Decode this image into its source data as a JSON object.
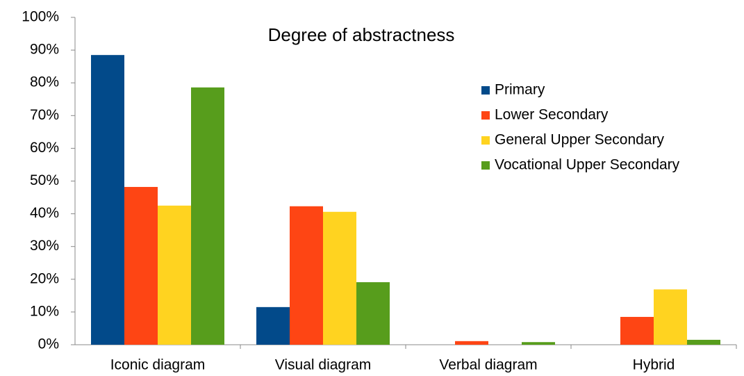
{
  "chart_data": {
    "type": "bar",
    "title": "Degree of abstractness",
    "categories": [
      "Iconic diagram",
      "Visual diagram",
      "Verbal diagram",
      "Hybrid"
    ],
    "series": [
      {
        "name": "Primary",
        "color": "#024a8a",
        "values": [
          88.5,
          11.5,
          0,
          0
        ]
      },
      {
        "name": "Lower Secondary",
        "color": "#fe4514",
        "values": [
          48.2,
          42.3,
          1.1,
          8.5
        ]
      },
      {
        "name": "General Upper Secondary",
        "color": "#ffd320",
        "values": [
          42.5,
          40.6,
          0,
          16.9
        ]
      },
      {
        "name": "Vocational Upper Secondary",
        "color": "#579d1c",
        "values": [
          78.6,
          19.1,
          0.8,
          1.5
        ]
      }
    ],
    "ylim": [
      0,
      100
    ],
    "yticks": [
      {
        "value": 0,
        "label": "0%"
      },
      {
        "value": 10,
        "label": "10%"
      },
      {
        "value": 20,
        "label": "20%"
      },
      {
        "value": 30,
        "label": "30%"
      },
      {
        "value": 40,
        "label": "40%"
      },
      {
        "value": 50,
        "label": "50%"
      },
      {
        "value": 60,
        "label": "60%"
      },
      {
        "value": 70,
        "label": "70%"
      },
      {
        "value": 80,
        "label": "80%"
      },
      {
        "value": 90,
        "label": "90%"
      },
      {
        "value": 100,
        "label": "100%"
      }
    ],
    "grid": false,
    "legend": "upper right"
  }
}
